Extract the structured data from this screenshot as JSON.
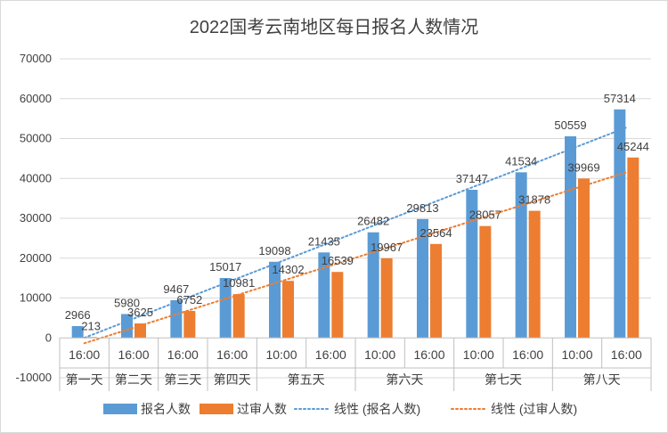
{
  "chart_data": {
    "type": "bar",
    "title": "2022国考云南地区每日报名人数情况",
    "xlabel": "",
    "ylabel": "",
    "ylim": [
      -10000,
      70000
    ],
    "yticks": [
      "70000",
      "60000",
      "50000",
      "40000",
      "30000",
      "20000",
      "10000",
      "0",
      "-10000"
    ],
    "grid": true,
    "legend_position": "bottom",
    "categories": [
      "16:00",
      "16:00",
      "16:00",
      "16:00",
      "10:00",
      "16:00",
      "10:00",
      "16:00",
      "10:00",
      "16:00",
      "10:00",
      "16:00"
    ],
    "groups": [
      {
        "label": "第一天",
        "span": 1
      },
      {
        "label": "第二天",
        "span": 1
      },
      {
        "label": "第三天",
        "span": 1
      },
      {
        "label": "第四天",
        "span": 1
      },
      {
        "label": "第五天",
        "span": 2
      },
      {
        "label": "第六天",
        "span": 2
      },
      {
        "label": "第七天",
        "span": 2
      },
      {
        "label": "第八天",
        "span": 2
      }
    ],
    "series": [
      {
        "name": "报名人数",
        "color": "#5b9bd5",
        "values": [
          2966,
          5980,
          9467,
          15017,
          19098,
          21435,
          26482,
          29813,
          37147,
          41534,
          50559,
          57314
        ],
        "labels": [
          "2966",
          "5980",
          "9467",
          "15017",
          "19098",
          "21435",
          "26482",
          "29813",
          "37147",
          "41534",
          "50559",
          "57314"
        ]
      },
      {
        "name": "过审人数",
        "color": "#ed7d31",
        "values": [
          213,
          3625,
          6752,
          10981,
          14302,
          16539,
          19967,
          23564,
          28057,
          31878,
          39969,
          45244
        ],
        "labels": [
          "213",
          "3625",
          "6752",
          "10981",
          "14302",
          "16539",
          "19967",
          "23564",
          "28057",
          "31878",
          "39969",
          "45244"
        ]
      }
    ],
    "trendlines": [
      {
        "name": "线性 (报名人数)",
        "series": 0,
        "color": "#5b9bd5"
      },
      {
        "name": "线性 (过审人数)",
        "series": 1,
        "color": "#ed7d31"
      }
    ]
  }
}
